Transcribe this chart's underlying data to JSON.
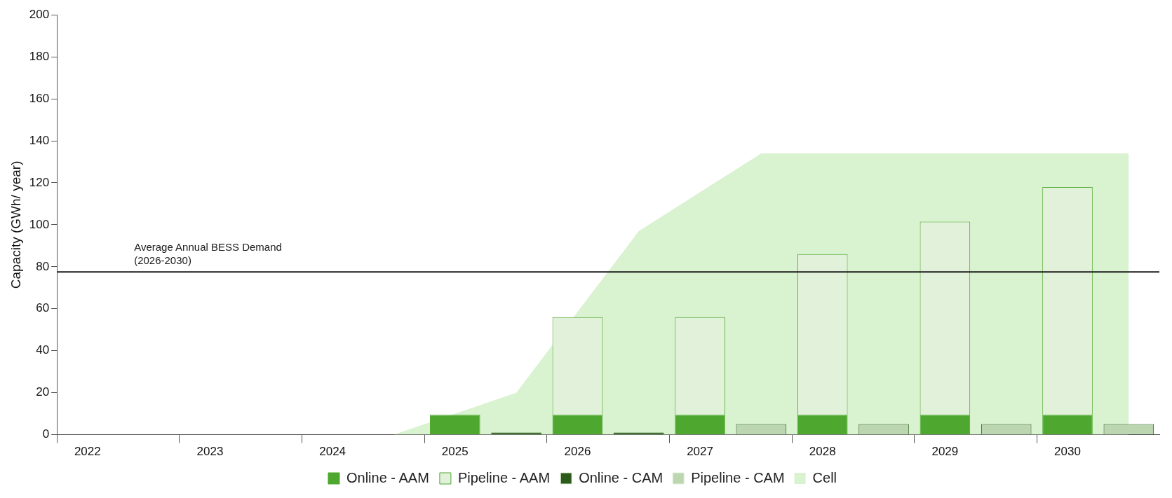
{
  "chart_data": {
    "type": "bar",
    "ylabel": "Capacity (GWh/ year)",
    "stacked": true,
    "categories": [
      "2022",
      null,
      "2023",
      null,
      "2024",
      null,
      "2025",
      null,
      "2026",
      null,
      "2027",
      null,
      "2028",
      null,
      "2029",
      null,
      "2030",
      null
    ],
    "series": [
      {
        "name": "Online - AAM",
        "color": "#4ea72e",
        "values": [
          0,
          null,
          0,
          null,
          0,
          null,
          9.5,
          null,
          9.5,
          null,
          9.5,
          null,
          9.5,
          null,
          9.5,
          null,
          9.5,
          null
        ]
      },
      {
        "name": "Pipeline - AAM",
        "color": "#e2f2da",
        "values": [
          0,
          null,
          0,
          null,
          0,
          null,
          0,
          null,
          46.5,
          null,
          46.5,
          null,
          76.5,
          null,
          92,
          null,
          108.5,
          null
        ]
      },
      {
        "name": "Online - CAM",
        "color": "#2b5a1a",
        "values": [
          null,
          0,
          null,
          0,
          null,
          0,
          null,
          1,
          null,
          1,
          null,
          0,
          null,
          0,
          null,
          0,
          null,
          0
        ]
      },
      {
        "name": "Pipeline - CAM",
        "color": "#bcd6b2",
        "values": [
          null,
          0,
          null,
          0,
          null,
          0,
          null,
          0,
          null,
          0,
          null,
          5,
          null,
          5,
          null,
          5,
          null,
          5
        ]
      },
      {
        "name": "Cell",
        "type": "area",
        "color": "#d9f2d0",
        "values": [
          null,
          null,
          null,
          null,
          null,
          0,
          null,
          20,
          null,
          97,
          null,
          134,
          null,
          134,
          null,
          134,
          null,
          134
        ]
      }
    ],
    "ylim": [
      0,
      200
    ],
    "yticks": [
      0,
      20,
      40,
      60,
      80,
      100,
      120,
      140,
      160,
      180,
      200
    ],
    "grid": false,
    "legend": "bottom",
    "ref_lines": [
      {
        "axis": "y",
        "value": 77.5,
        "label": "Average Annual BESS Demand (2026-2030)",
        "color": "#1a1a1a"
      }
    ]
  }
}
